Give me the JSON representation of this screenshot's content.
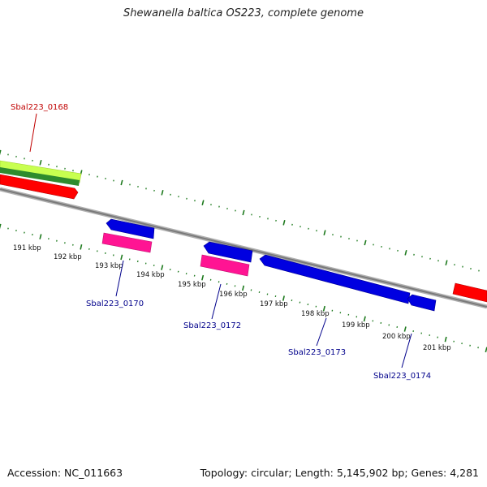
{
  "title": "Shewanella baltica OS223, complete genome",
  "footer": {
    "accession": "Accession: NC_011663",
    "summary": "Topology: circular; Length: 5,145,902 bp; Genes: 4,281"
  },
  "colors": {
    "backbone": "#808080",
    "ticks": "#1e7a1e",
    "label_red": "#c00000",
    "label_blue": "#00008b",
    "feature_red": "#ff0000",
    "feature_blue": "#0000e0",
    "feature_pink": "#ff1493",
    "feature_lime": "#c8ff50",
    "feature_green": "#2e8b2e"
  },
  "ruler": {
    "labels": [
      "191 kbp",
      "192 kbp",
      "193 kbp",
      "194 kbp",
      "195 kbp",
      "196 kbp",
      "197 kbp",
      "198 kbp",
      "199 kbp",
      "200 kbp",
      "201 kbp"
    ]
  },
  "genes": [
    {
      "label": "Sbal223_0168",
      "strand": "top",
      "color": "red"
    },
    {
      "label": "Sbal223_0170",
      "strand": "bottom",
      "color": "blue"
    },
    {
      "label": "Sbal223_0172",
      "strand": "bottom",
      "color": "blue"
    },
    {
      "label": "Sbal223_0173",
      "strand": "bottom",
      "color": "blue"
    },
    {
      "label": "Sbal223_0174",
      "strand": "bottom",
      "color": "blue"
    }
  ]
}
